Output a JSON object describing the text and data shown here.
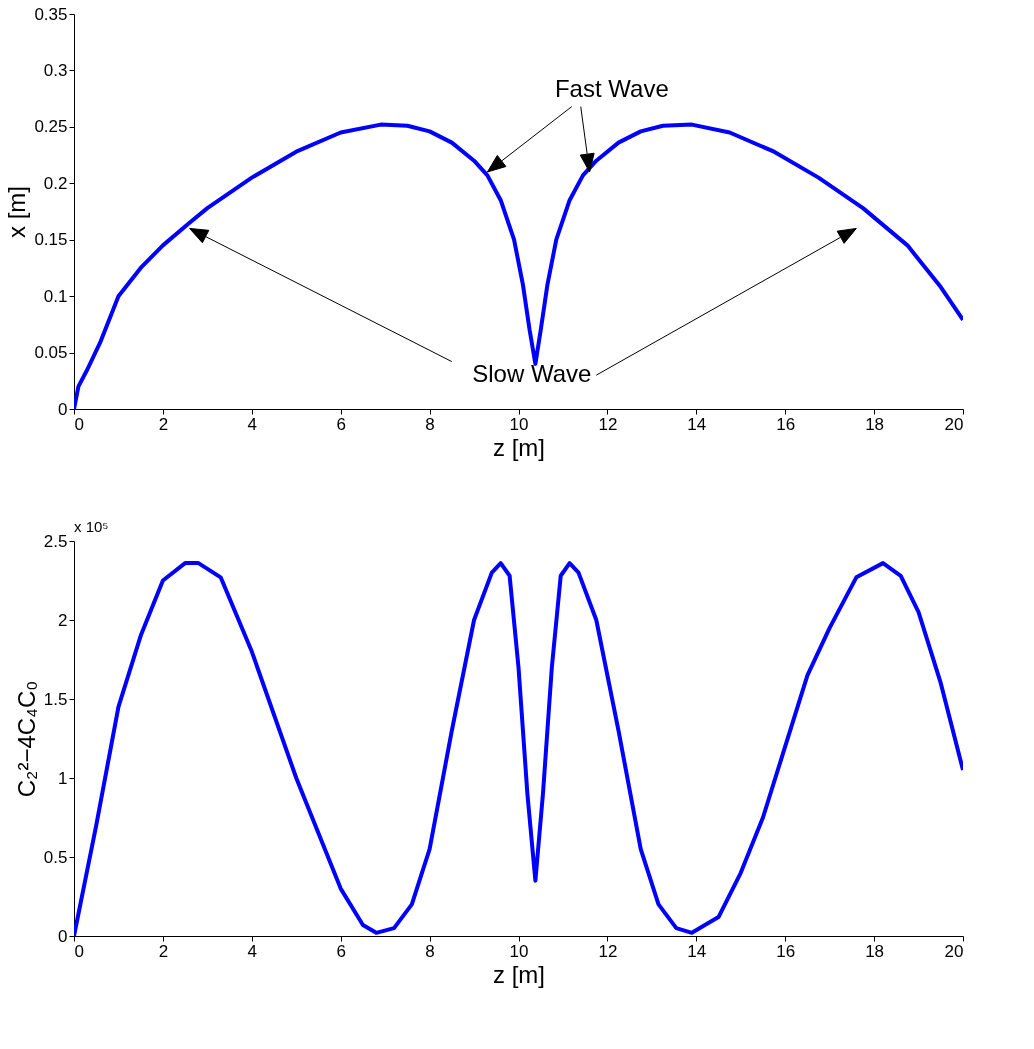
{
  "chart_data": [
    {
      "type": "line",
      "xlabel": "z [m]",
      "ylabel": "x [m]",
      "xlim": [
        0,
        20
      ],
      "xticks": [
        0,
        2,
        4,
        6,
        8,
        10,
        12,
        14,
        16,
        18,
        20
      ],
      "ylim": [
        0,
        0.35
      ],
      "yticks": [
        {
          "value": 0,
          "label": "0"
        },
        0.05,
        {
          "value": 0.1,
          "label": "0.1"
        },
        0.15,
        {
          "value": 0.2,
          "label": "0.2"
        },
        0.25,
        {
          "value": 0.3,
          "label": "0.3"
        },
        0.35
      ],
      "grid": false,
      "legend": false,
      "marker": "none",
      "line_style": "solid",
      "annotations": [
        "Fast Wave",
        "Slow Wave"
      ],
      "series": [
        {
          "color": "#0000ff",
          "x": [
            0,
            0.1,
            0.3,
            0.6,
            1,
            1.5,
            2,
            2.6,
            3,
            4,
            5,
            6,
            6.9,
            7.5,
            8,
            8.5,
            9,
            9.3,
            9.6,
            9.9,
            10.1,
            10.25,
            10.38,
            10.5,
            10.65,
            10.85,
            11.15,
            11.45,
            11.75,
            12.25,
            12.75,
            13.25,
            13.9,
            14.75,
            15.75,
            16.75,
            17.75,
            18.75,
            19.5,
            20
          ],
          "values": [
            0,
            0.02,
            0.035,
            0.06,
            0.1,
            0.125,
            0.145,
            0.165,
            0.178,
            0.205,
            0.228,
            0.245,
            0.252,
            0.251,
            0.246,
            0.236,
            0.22,
            0.207,
            0.185,
            0.15,
            0.11,
            0.07,
            0.04,
            0.07,
            0.11,
            0.15,
            0.185,
            0.207,
            0.22,
            0.236,
            0.246,
            0.251,
            0.252,
            0.245,
            0.228,
            0.205,
            0.178,
            0.145,
            0.108,
            0.079
          ]
        }
      ]
    },
    {
      "type": "line",
      "xlabel": "z [m]",
      "ylabel": "C₂²−4C₄C₀",
      "xlim": [
        0,
        20
      ],
      "xticks": [
        0,
        2,
        4,
        6,
        8,
        10,
        12,
        14,
        16,
        18,
        20
      ],
      "ylim": [
        0,
        2.5
      ],
      "yticks": [
        {
          "value": 0,
          "label": "0"
        },
        0.5,
        {
          "value": 1,
          "label": "1"
        },
        1.5,
        {
          "value": 2,
          "label": "2"
        },
        2.5
      ],
      "grid": false,
      "legend": false,
      "marker": "none",
      "line_style": "solid",
      "annotations": [
        "x 10⁵"
      ],
      "series": [
        {
          "color": "#0000ff",
          "x": [
            0,
            0.5,
            1,
            1.5,
            2,
            2.5,
            2.8,
            3.3,
            4,
            5,
            6,
            6.5,
            6.8,
            7.2,
            7.6,
            8,
            8.5,
            9,
            9.4,
            9.6,
            9.8,
            10,
            10.2,
            10.38,
            10.55,
            10.75,
            10.95,
            11.15,
            11.35,
            11.75,
            12.25,
            12.75,
            13.15,
            13.55,
            13.9,
            14.5,
            15,
            15.5,
            16,
            16.5,
            17,
            17.6,
            18.2,
            18.6,
            19,
            19.5,
            20
          ],
          "values": [
            0,
            0.7,
            1.45,
            1.9,
            2.25,
            2.36,
            2.36,
            2.27,
            1.8,
            1.0,
            0.3,
            0.07,
            0.02,
            0.05,
            0.2,
            0.55,
            1.3,
            2.0,
            2.3,
            2.36,
            2.28,
            1.7,
            0.9,
            0.35,
            0.9,
            1.7,
            2.28,
            2.36,
            2.3,
            2.0,
            1.3,
            0.55,
            0.2,
            0.05,
            0.02,
            0.12,
            0.4,
            0.75,
            1.2,
            1.65,
            1.95,
            2.27,
            2.36,
            2.28,
            2.05,
            1.6,
            1.05
          ]
        }
      ]
    }
  ]
}
